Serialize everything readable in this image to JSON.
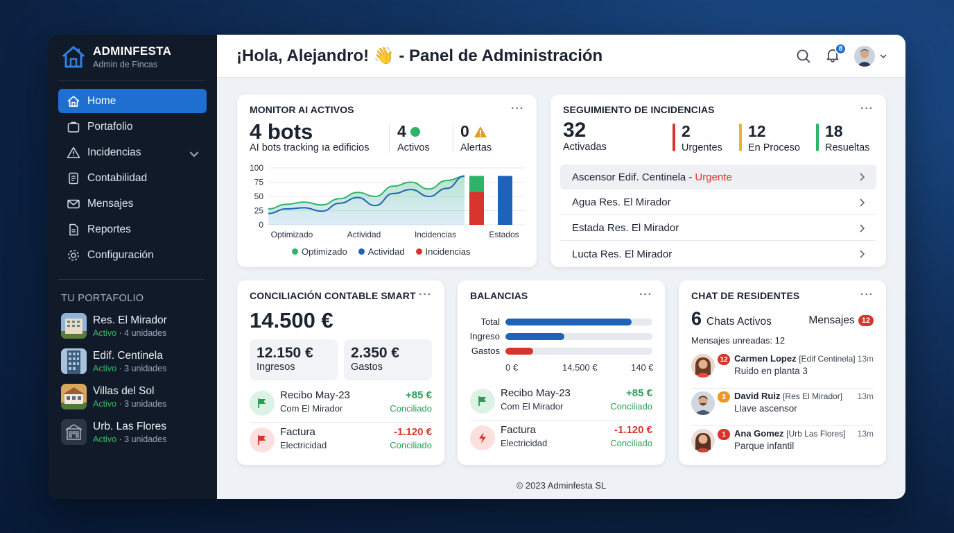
{
  "brand": {
    "title": "ADMINFESTA",
    "subtitle": "Admin de Fincas"
  },
  "nav": [
    {
      "label": "Home",
      "icon": "home-icon",
      "active": true
    },
    {
      "label": "Portafolio",
      "icon": "briefcase-icon"
    },
    {
      "label": "Incidencias",
      "icon": "warning-icon"
    },
    {
      "label": "Contabilidad",
      "icon": "ledger-icon"
    },
    {
      "label": "Mensajes",
      "icon": "mail-icon"
    },
    {
      "label": "Reportes",
      "icon": "report-icon"
    },
    {
      "label": "Configuración",
      "icon": "gear-icon"
    }
  ],
  "portfolio": {
    "title": "TU PORTAFOLIO",
    "items": [
      {
        "name": "Res. El Mirador",
        "status": "Activo",
        "units": "· 4 unidades"
      },
      {
        "name": "Edif. Centinela",
        "status": "Activo",
        "units": "· 3 unidades"
      },
      {
        "name": "Villas del Sol",
        "status": "Activo",
        "units": "· 3 unidades"
      },
      {
        "name": "Urb. Las Flores",
        "status": "Activo",
        "units": "· 3 unidades"
      }
    ]
  },
  "header": {
    "title": "¡Hola, Alejandro! 👋 - Panel de Administración",
    "notif_count": "8"
  },
  "monitor": {
    "title": "MONITOR AI ACTIVOS",
    "bots": "4 bots",
    "bots_sub": "AI bots tracking ıa edificios",
    "active_count": "4",
    "active_label": "Activos",
    "alert_count": "0",
    "alert_label": "Alertas"
  },
  "chart_data": {
    "type": "area",
    "y_ticks": [
      "100",
      "75",
      "50",
      "25",
      "0"
    ],
    "ylim": [
      0,
      100
    ],
    "x_labels": [
      "Optimizado",
      "Actividad",
      "Incidencias",
      "Estados"
    ],
    "series": [
      {
        "name": "Optimizado",
        "color": "#2fb36a",
        "values": [
          28,
          36,
          40,
          35,
          46,
          57,
          50,
          68,
          75,
          63,
          78,
          85
        ]
      },
      {
        "name": "Actividad",
        "color": "#1f63b8",
        "values": [
          20,
          28,
          30,
          24,
          38,
          48,
          34,
          55,
          62,
          50,
          64,
          86
        ]
      },
      {
        "name": "Incidencias",
        "color": "#d9342b",
        "values": []
      }
    ],
    "bars": [
      {
        "label": "Estados",
        "stack": [
          {
            "value": 58,
            "color": "#d9342b"
          },
          {
            "value": 28,
            "color": "#2fb36a"
          }
        ]
      },
      {
        "label": "Estados",
        "stack": [
          {
            "value": 86,
            "color": "#1f63b8"
          }
        ]
      }
    ],
    "legend": [
      "Optimizado",
      "Actividad",
      "Incidencias"
    ]
  },
  "incidents": {
    "title": "SEGUIMIENTO DE INCIDENCIAS",
    "total": "32",
    "total_label": "Activadas",
    "urgent": "2",
    "urgent_label": "Urgentes",
    "progress": "12",
    "progress_label": "En Proceso",
    "resolved": "18",
    "resolved_label": "Resueltas",
    "rows": [
      {
        "text": "Ascensor Edif. Centinela - ",
        "tag": "Urgente"
      },
      {
        "text": "Agua Res. El Mirador",
        "tag": ""
      },
      {
        "text": "Estada Res. El Mirador",
        "tag": ""
      },
      {
        "text": "Lucta Res. El Mirador",
        "tag": ""
      }
    ]
  },
  "conciliacion": {
    "title": "CONCILIACIÓN CONTABLE SMART",
    "total": "14.500 €",
    "income": "12.150 €",
    "income_label": "Ingresos",
    "expenses": "2.350 €",
    "expenses_label": "Gastos",
    "tx": [
      {
        "title": "Recibo May-23",
        "sub": "Com El Mirador",
        "amount": "+85 €",
        "status": "Conciliado"
      },
      {
        "title": "Factura",
        "sub": "Electricidad",
        "amount": "-1.120 €",
        "status": "Conciliado"
      }
    ]
  },
  "balancias": {
    "title": "BALANCIAS",
    "bars": [
      {
        "label": "Total",
        "fraction": 0.86,
        "color": "#1f63b8"
      },
      {
        "label": "Ingreso",
        "fraction": 0.4,
        "color": "#1f63b8"
      },
      {
        "label": "Gastos",
        "fraction": 0.19,
        "color": "#d9342b"
      }
    ],
    "axis": [
      "0 €",
      "14.500 €",
      "140 €"
    ],
    "tx": [
      {
        "title": "Recibo May-23",
        "sub": "Com El Mirador",
        "amount": "+85 €",
        "status": "Conciliado"
      },
      {
        "title": "Factura",
        "sub": "Electricidad",
        "amount": "-1.120 €",
        "status": "Conciliado"
      }
    ]
  },
  "chat": {
    "title": "CHAT DE RESIDENTES",
    "count": "6",
    "count_label": "Chats Activos",
    "messages_label": "Mensajes",
    "messages_count": "12",
    "unread": "Mensajes unreadas: 12",
    "items": [
      {
        "badge": "12",
        "name": "Carmen Lopez",
        "tag": "[Edif Centinela]",
        "msg": "Ruido en planta 3",
        "time": "13m"
      },
      {
        "badge": "3",
        "name": "David Ruiz",
        "tag": "[Res El Mirador]",
        "msg": "Llave ascensor",
        "time": "13m"
      },
      {
        "badge": "1",
        "name": "Ana Gomez",
        "tag": "[Urb Las Flores]",
        "msg": "Parque infantil",
        "time": "13m"
      }
    ]
  },
  "footer": "© 2023 Adminfesta SL"
}
